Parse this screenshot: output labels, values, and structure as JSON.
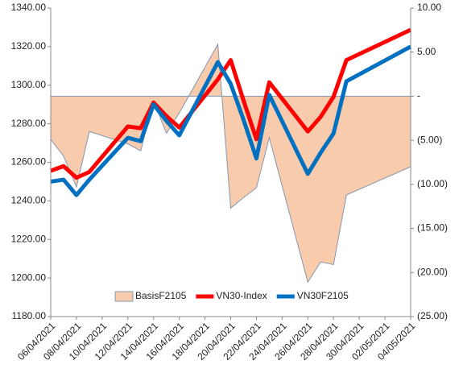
{
  "chart_data": {
    "type": "line",
    "x": [
      "06/04/2021",
      "07/04/2021",
      "08/04/2021",
      "09/04/2021",
      "12/04/2021",
      "13/04/2021",
      "14/04/2021",
      "15/04/2021",
      "16/04/2021",
      "19/04/2021",
      "20/04/2021",
      "21/04/2021",
      "22/04/2021",
      "23/04/2021",
      "26/04/2021",
      "27/04/2021",
      "28/04/2021",
      "29/04/2021",
      "04/05/2021"
    ],
    "series": [
      {
        "name": "BasisF2105",
        "type": "area",
        "axis": "y2",
        "color": "#f8cbad",
        "edge": "#8497b0",
        "values": [
          -4.9,
          -6.8,
          -10.3,
          -4.0,
          -5.4,
          -6.2,
          -0.5,
          -4.2,
          -1.9,
          5.9,
          -12.7,
          -11.5,
          -10.4,
          -4.7,
          -21.1,
          -18.8,
          -19.1,
          -11.2,
          -8.0
        ]
      },
      {
        "name": "VN30-Index",
        "type": "line",
        "color": "#ff0000",
        "values": [
          1255.6,
          1258,
          1252,
          1255,
          1278.6,
          1277.7,
          1291,
          1284,
          1278,
          1303,
          1313,
          1292,
          1272,
          1301.5,
          1276,
          1283.6,
          1294,
          1313,
          1328.7
        ]
      },
      {
        "name": "VN30F2105",
        "type": "line",
        "color": "#0070c0",
        "values": [
          1250,
          1251,
          1243,
          1251,
          1272.7,
          1271,
          1290,
          1281.5,
          1274,
          1312,
          1300.7,
          1282,
          1262,
          1295,
          1254,
          1265,
          1275,
          1302,
          1320
        ]
      }
    ],
    "xticks": [
      "06/04/2021",
      "08/04/2021",
      "10/04/2021",
      "12/04/2021",
      "14/04/2021",
      "16/04/2021",
      "18/04/2021",
      "20/04/2021",
      "22/04/2021",
      "24/04/2021",
      "26/04/2021",
      "28/04/2021",
      "30/04/2021",
      "02/05/2021",
      "04/05/2021"
    ],
    "ylim": [
      1180,
      1340
    ],
    "yticks": [
      {
        "value": 1180,
        "label": "1180.00"
      },
      {
        "value": 1200,
        "label": "1200.00"
      },
      {
        "value": 1220,
        "label": "1220.00"
      },
      {
        "value": 1240,
        "label": "1240.00"
      },
      {
        "value": 1260,
        "label": "1260.00"
      },
      {
        "value": 1280,
        "label": "1280.00"
      },
      {
        "value": 1300,
        "label": "1300.00"
      },
      {
        "value": 1320,
        "label": "1320.00"
      },
      {
        "value": 1340,
        "label": "1340.00"
      }
    ],
    "y2lim": [
      -25,
      10
    ],
    "y2ticks": [
      {
        "value": -25,
        "label": "(25.00)"
      },
      {
        "value": -20,
        "label": "(20.00)"
      },
      {
        "value": -15,
        "label": "(15.00)"
      },
      {
        "value": -10,
        "label": "(10.00)"
      },
      {
        "value": -5,
        "label": "(5.00)"
      },
      {
        "value": 0,
        "label": "-"
      },
      {
        "value": 5,
        "label": "5.00"
      },
      {
        "value": 10,
        "label": "10.00"
      }
    ],
    "legend": "bottom"
  }
}
